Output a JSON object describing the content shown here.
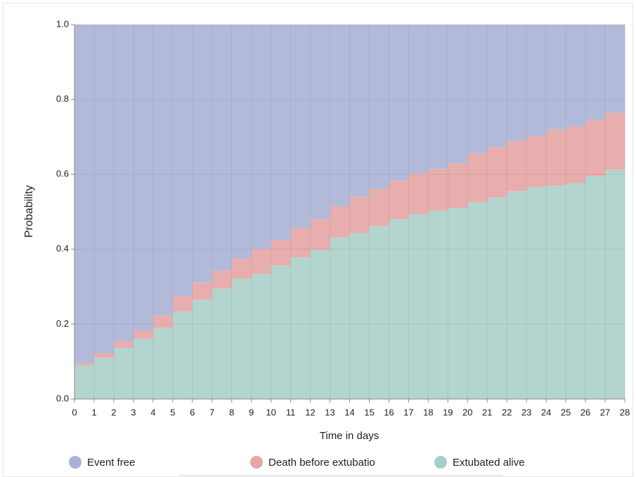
{
  "chart_data": {
    "type": "stacked-step-area",
    "x_label": "Time in days",
    "y_label": "Probability",
    "x": [
      0,
      1,
      2,
      3,
      4,
      5,
      6,
      7,
      8,
      9,
      10,
      11,
      12,
      13,
      14,
      15,
      16,
      17,
      18,
      19,
      20,
      21,
      22,
      23,
      24,
      25,
      26,
      27
    ],
    "xlim": [
      0,
      28
    ],
    "xticks": [
      0,
      1,
      2,
      3,
      4,
      5,
      6,
      7,
      8,
      9,
      10,
      11,
      12,
      13,
      14,
      15,
      16,
      17,
      18,
      19,
      20,
      21,
      22,
      23,
      24,
      25,
      26,
      27,
      28
    ],
    "ylim": [
      0,
      1
    ],
    "yticks": [
      {
        "value": 0,
        "label": "0.0"
      },
      0.2,
      0.4,
      0.6,
      0.8,
      {
        "value": 1,
        "label": "1.0"
      }
    ],
    "grid": true,
    "series": [
      {
        "name": "Event free",
        "color": "#b3bad9",
        "legend_color": "#a9b1d8",
        "values": [
          0.904,
          0.878,
          0.846,
          0.816,
          0.777,
          0.726,
          0.689,
          0.657,
          0.625,
          0.6,
          0.576,
          0.544,
          0.52,
          0.486,
          0.46,
          0.439,
          0.417,
          0.398,
          0.385,
          0.371,
          0.345,
          0.328,
          0.311,
          0.298,
          0.281,
          0.272,
          0.255,
          0.235
        ]
      },
      {
        "name": "Death before extubatio",
        "color": "#e8adad",
        "legend_color": "#e9a4a4",
        "values": [
          0.006,
          0.012,
          0.017,
          0.023,
          0.033,
          0.041,
          0.046,
          0.048,
          0.054,
          0.066,
          0.068,
          0.077,
          0.082,
          0.082,
          0.097,
          0.099,
          0.103,
          0.109,
          0.112,
          0.119,
          0.13,
          0.134,
          0.134,
          0.137,
          0.149,
          0.152,
          0.15,
          0.153
        ]
      },
      {
        "name": "Extubated alive",
        "color": "#b3d4cf",
        "legend_color": "#a7cfc9",
        "values": [
          0.09,
          0.11,
          0.137,
          0.161,
          0.19,
          0.233,
          0.265,
          0.295,
          0.321,
          0.334,
          0.356,
          0.379,
          0.398,
          0.432,
          0.443,
          0.462,
          0.48,
          0.493,
          0.503,
          0.51,
          0.525,
          0.538,
          0.555,
          0.565,
          0.57,
          0.576,
          0.595,
          0.612
        ]
      }
    ]
  }
}
